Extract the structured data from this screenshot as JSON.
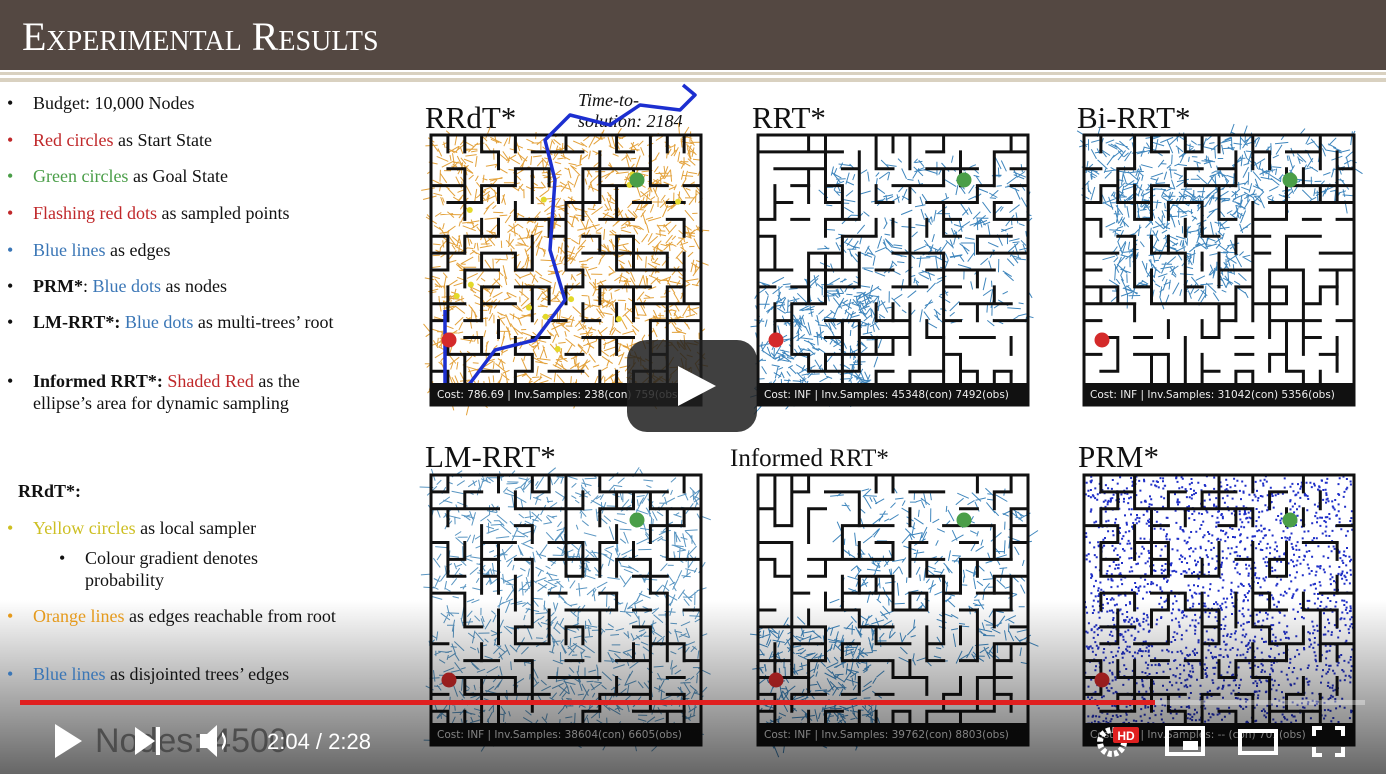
{
  "slide": {
    "title": "Experimental Results",
    "legend_general": [
      {
        "color": "black",
        "parts": [
          {
            "text": "Budget: 10,000 Nodes"
          }
        ]
      },
      {
        "color": "red",
        "parts": [
          {
            "text": "Red circles",
            "style": "red"
          },
          {
            "text": " as Start State"
          }
        ]
      },
      {
        "color": "green",
        "parts": [
          {
            "text": "Green circles",
            "style": "green"
          },
          {
            "text": " as Goal State"
          }
        ]
      },
      {
        "color": "red",
        "parts": [
          {
            "text": "Flashing red dots",
            "style": "red"
          },
          {
            "text": " as sampled points"
          }
        ]
      },
      {
        "color": "blue",
        "parts": [
          {
            "text": "Blue lines",
            "style": "blue"
          },
          {
            "text": " as edges"
          }
        ]
      },
      {
        "color": "black",
        "parts": [
          {
            "text": "PRM*",
            "style": "bold"
          },
          {
            "text": ": "
          },
          {
            "text": "Blue dots",
            "style": "blue"
          },
          {
            "text": " as nodes"
          }
        ]
      },
      {
        "color": "black",
        "parts": [
          {
            "text": "LM-RRT*:",
            "style": "bold"
          },
          {
            "text": " "
          },
          {
            "text": "Blue dots",
            "style": "blue"
          },
          {
            "text": " as multi-trees’ root"
          }
        ]
      },
      {
        "color": "black",
        "parts": [
          {
            "text": "Informed RRT*:",
            "style": "bold"
          },
          {
            "text": " "
          },
          {
            "text": "Shaded Red",
            "style": "red"
          },
          {
            "text": " as the ellipse’s area for dynamic sampling"
          }
        ]
      }
    ],
    "legend_rrdt": {
      "heading": "RRdT*:",
      "items": [
        {
          "color": "yellow",
          "parts": [
            {
              "text": "Yellow circles",
              "style": "yellow"
            },
            {
              "text": " as local sampler"
            }
          ],
          "sub_items": [
            "Colour gradient denotes probability"
          ]
        },
        {
          "color": "orange",
          "parts": [
            {
              "text": "Orange lines",
              "style": "orange"
            },
            {
              "text": " as edges reachable from root"
            }
          ]
        },
        {
          "color": "blue",
          "parts": [
            {
              "text": "Blue lines",
              "style": "blue"
            },
            {
              "text": " as disjointed trees’ edges"
            }
          ]
        }
      ]
    },
    "annotation": [
      "Time-to-",
      "solution: 2184"
    ],
    "panels": [
      {
        "title": "RRdT*",
        "caption": "Cost: 786.69 | Inv.Samples: 238(con) 759(obs)"
      },
      {
        "title": "RRT*",
        "caption": "Cost: INF | Inv.Samples: 45348(con) 7492(obs)"
      },
      {
        "title": "Bi-RRT*",
        "caption": "Cost: INF | Inv.Samples: 31042(con) 5356(obs)"
      },
      {
        "title": "LM-RRT*",
        "caption": "Cost: INF | Inv.Samples: 38604(con) 6605(obs)"
      },
      {
        "title": "Informed RRT*",
        "caption": "Cost: INF | Inv.Samples: 39762(con) 8803(obs)"
      },
      {
        "title": "PRM*",
        "caption": "Cost: INF | Inv.Samples: -- (con) 701(obs)"
      }
    ],
    "overlay_text": "Nodes: 4500"
  },
  "player": {
    "time": "2:04 / 2:28",
    "badge": "HD"
  }
}
